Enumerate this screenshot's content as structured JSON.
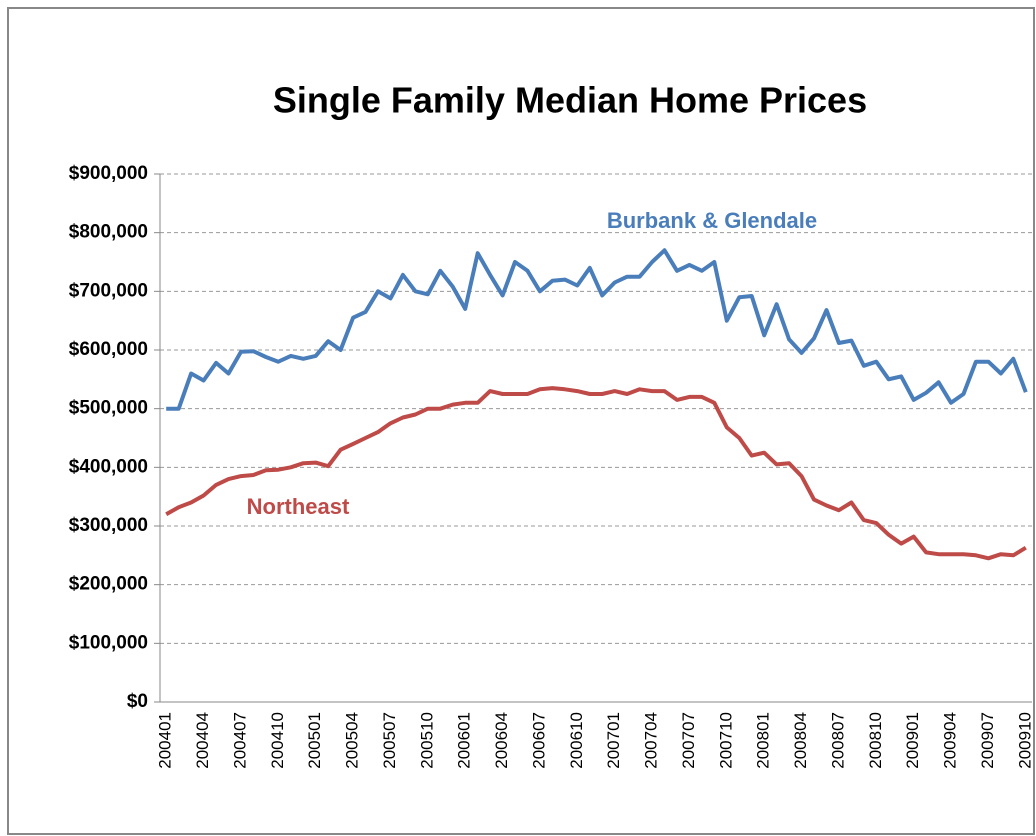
{
  "chart_data": {
    "type": "line",
    "title": "Single Family Median Home Prices",
    "categories": [
      "200401",
      null,
      null,
      "200404",
      null,
      null,
      "200407",
      null,
      null,
      "200410",
      null,
      null,
      "200501",
      null,
      null,
      "200504",
      null,
      null,
      "200507",
      null,
      null,
      "200510",
      null,
      null,
      "200601",
      null,
      null,
      "200604",
      null,
      null,
      "200607",
      null,
      null,
      "200610",
      null,
      null,
      "200701",
      null,
      null,
      "200704",
      null,
      null,
      "200707",
      null,
      null,
      "200710",
      null,
      null,
      "200801",
      null,
      null,
      "200804",
      null,
      null,
      "200807",
      null,
      null,
      "200810",
      null,
      null,
      "200901",
      null,
      null,
      "200904",
      null,
      null,
      "200907",
      null,
      null,
      "200910"
    ],
    "series": [
      {
        "name": "Burbank & Glendale",
        "color": "#4a7ebb",
        "values": [
          500000,
          500000,
          560000,
          548000,
          578000,
          560000,
          597000,
          598000,
          588000,
          580000,
          590000,
          585000,
          590000,
          615000,
          600000,
          655000,
          665000,
          700000,
          688000,
          728000,
          700000,
          695000,
          735000,
          708000,
          670000,
          765000,
          728000,
          693000,
          750000,
          735000,
          700000,
          718000,
          720000,
          710000,
          740000,
          693000,
          715000,
          725000,
          725000,
          750000,
          770000,
          735000,
          745000,
          735000,
          750000,
          650000,
          690000,
          692000,
          625000,
          678000,
          618000,
          595000,
          620000,
          668000,
          612000,
          616000,
          573000,
          580000,
          550000,
          555000,
          515000,
          527000,
          545000,
          510000,
          525000,
          580000,
          580000,
          560000,
          585000,
          528000
        ]
      },
      {
        "name": "Northeast",
        "color": "#be4b48",
        "values": [
          320000,
          332000,
          340000,
          352000,
          370000,
          380000,
          385000,
          387000,
          395000,
          396000,
          400000,
          407000,
          408000,
          402000,
          430000,
          440000,
          450000,
          460000,
          475000,
          485000,
          490000,
          500000,
          500000,
          507000,
          510000,
          510000,
          530000,
          525000,
          525000,
          525000,
          533000,
          535000,
          533000,
          530000,
          525000,
          525000,
          530000,
          525000,
          533000,
          530000,
          530000,
          515000,
          520000,
          520000,
          510000,
          468000,
          450000,
          420000,
          425000,
          405000,
          407000,
          385000,
          345000,
          335000,
          327000,
          340000,
          310000,
          305000,
          285000,
          270000,
          282000,
          255000,
          252000,
          252000,
          252000,
          250000,
          245000,
          252000,
          250000,
          263000
        ]
      }
    ],
    "ylim": [
      0,
      900000
    ],
    "yticks": [
      {
        "value": 0,
        "label": "$0"
      },
      {
        "value": 100000,
        "label": "$100,000"
      },
      {
        "value": 200000,
        "label": "$200,000"
      },
      {
        "value": 300000,
        "label": "$300,000"
      },
      {
        "value": 400000,
        "label": "$400,000"
      },
      {
        "value": 500000,
        "label": "$500,000"
      },
      {
        "value": 600000,
        "label": "$600,000"
      },
      {
        "value": 700000,
        "label": "$700,000"
      },
      {
        "value": 800000,
        "label": "$800,000"
      },
      {
        "value": 900000,
        "label": "$900,000"
      }
    ],
    "grid": true
  }
}
